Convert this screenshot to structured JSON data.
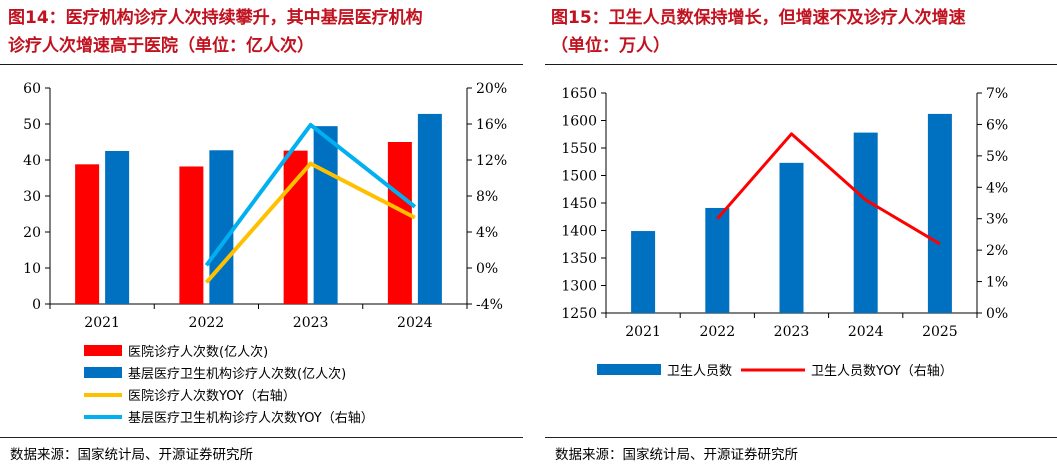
{
  "figures": [
    {
      "title": "图14：医疗机构诊疗人次持续攀升，其中基层医疗机构\n诊疗人次增速高于医院（单位：亿人次）",
      "source": "数据来源：国家统计局、开源证券研究所"
    },
    {
      "title": "图15：卫生人员数保持增长，但增速不及诊疗人次增速\n（单位：万人）",
      "source": "数据来源：国家统计局、开源证券研究所"
    }
  ],
  "chart_data": [
    {
      "type": "bar",
      "categories": [
        "2021",
        "2022",
        "2023",
        "2024"
      ],
      "ylim": [
        0,
        60
      ],
      "y_ticks": [
        "0",
        "10",
        "20",
        "30",
        "40",
        "50",
        "60"
      ],
      "y2lim": [
        -4,
        20
      ],
      "y2_ticks": [
        "-4%",
        "0%",
        "4%",
        "8%",
        "12%",
        "16%",
        "20%"
      ],
      "legend_position": "bottom-stacked",
      "series": [
        {
          "name": "医院诊疗人次数(亿人次)",
          "kind": "bar",
          "color": "#ff0000",
          "values": [
            38.8,
            38.2,
            42.6,
            45.0
          ]
        },
        {
          "name": "基层医疗卫生机构诊疗人次数(亿人次)",
          "kind": "bar",
          "color": "#0070c0",
          "values": [
            42.5,
            42.7,
            49.4,
            52.8
          ]
        },
        {
          "name": "医院诊疗人次数YOY（右轴）",
          "kind": "line",
          "axis": "right",
          "color": "#ffc000",
          "values": [
            null,
            -1.6,
            11.6,
            5.6
          ]
        },
        {
          "name": "基层医疗卫生机构诊疗人次数YOY（右轴）",
          "kind": "line",
          "axis": "right",
          "color": "#00b0f0",
          "values": [
            null,
            0.3,
            15.9,
            6.8
          ]
        }
      ]
    },
    {
      "type": "bar",
      "categories": [
        "2021",
        "2022",
        "2023",
        "2024",
        "2025"
      ],
      "ylim": [
        1250,
        1650
      ],
      "y_ticks": [
        "1250",
        "1300",
        "1350",
        "1400",
        "1450",
        "1500",
        "1550",
        "1600",
        "1650"
      ],
      "y2lim": [
        0,
        7
      ],
      "y2_ticks": [
        "0%",
        "1%",
        "2%",
        "3%",
        "4%",
        "5%",
        "6%",
        "7%"
      ],
      "legend_position": "bottom-inline",
      "series": [
        {
          "name": "卫生人员数",
          "kind": "bar",
          "color": "#0070c0",
          "values": [
            1399,
            1441,
            1523,
            1578,
            1612
          ]
        },
        {
          "name": "卫生人员数YOY（右轴）",
          "kind": "line",
          "axis": "right",
          "color": "#ff0000",
          "values": [
            null,
            3.0,
            5.7,
            3.6,
            2.2
          ]
        }
      ]
    }
  ]
}
